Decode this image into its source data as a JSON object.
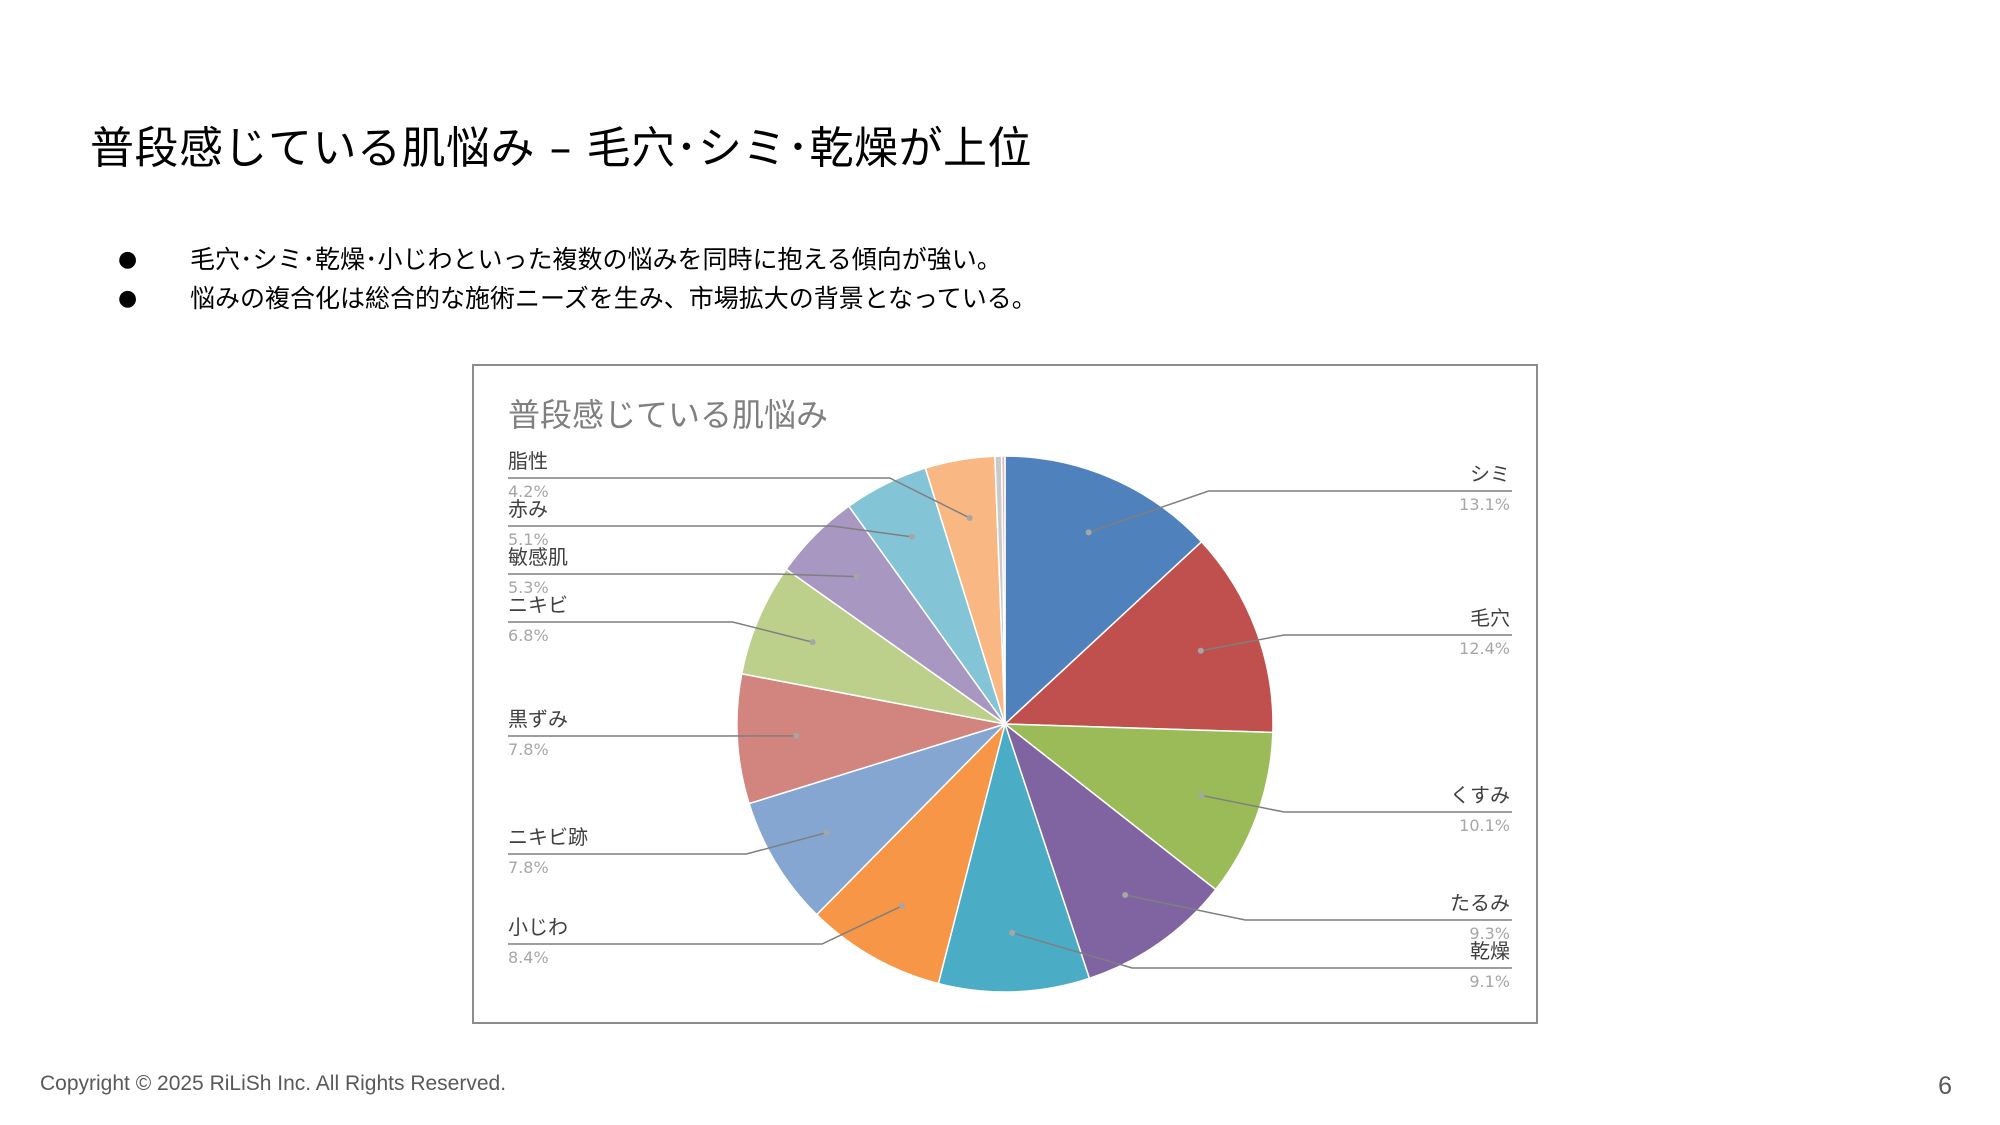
{
  "slide": {
    "title": "普段感じている肌悩み – 毛穴･シミ･乾燥が上位",
    "bullets": [
      {
        "marker": "●",
        "text": "毛穴･シミ･乾燥･小じわといった複数の悩みを同時に抱える傾向が強い。"
      },
      {
        "marker": "●",
        "text": "悩みの複合化は総合的な施術ニーズを生み、市場拡大の背景となっている。"
      }
    ],
    "footer": "Copyright © 2025 RiLiSh Inc. All Rights Reserved.",
    "page_number": "6"
  },
  "chart_data": {
    "type": "pie",
    "title": "普段感じている肌悩み",
    "slices": [
      {
        "label": "シミ",
        "value": 13.1,
        "value_text": "13.1%",
        "color": "#4F81BD"
      },
      {
        "label": "毛穴",
        "value": 12.4,
        "value_text": "12.4%",
        "color": "#C0504D"
      },
      {
        "label": "くすみ",
        "value": 10.1,
        "value_text": "10.1%",
        "color": "#9BBB59"
      },
      {
        "label": "たるみ",
        "value": 9.3,
        "value_text": "9.3%",
        "color": "#8064A2"
      },
      {
        "label": "乾燥",
        "value": 9.1,
        "value_text": "9.1%",
        "color": "#4BACC6"
      },
      {
        "label": "小じわ",
        "value": 8.4,
        "value_text": "8.4%",
        "color": "#F79646"
      },
      {
        "label": "ニキビ跡",
        "value": 7.8,
        "value_text": "7.8%",
        "color": "#84A6D0"
      },
      {
        "label": "黒ずみ",
        "value": 7.8,
        "value_text": "7.8%",
        "color": "#D2847E"
      },
      {
        "label": "ニキビ",
        "value": 6.8,
        "value_text": "6.8%",
        "color": "#BCD08C"
      },
      {
        "label": "敏感肌",
        "value": 5.3,
        "value_text": "5.3%",
        "color": "#A897C1"
      },
      {
        "label": "赤み",
        "value": 5.1,
        "value_text": "5.1%",
        "color": "#84C4D7"
      },
      {
        "label": "脂性",
        "value": 4.2,
        "value_text": "4.2%",
        "color": "#F9B883"
      },
      {
        "label": "",
        "value": 0.4,
        "value_text": "",
        "color": "#C9C9C9"
      },
      {
        "label": "",
        "value": 0.2,
        "value_text": "",
        "color": "#E6B9B8"
      }
    ]
  }
}
